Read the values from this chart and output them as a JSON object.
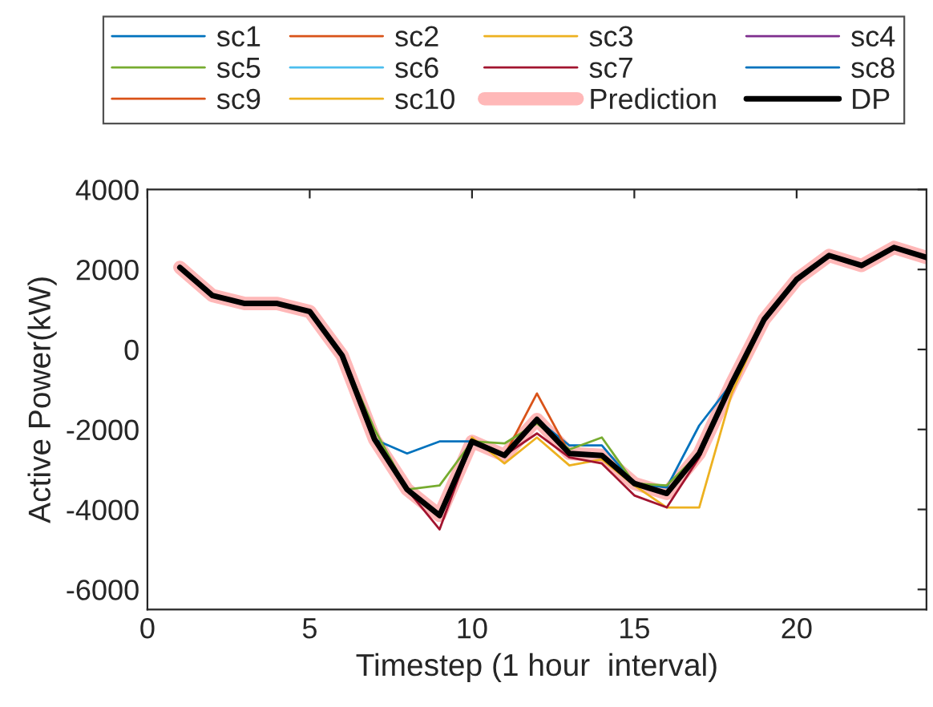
{
  "chart_data": {
    "type": "line",
    "xlabel": "Timestep (1 hour  interval)",
    "ylabel": "Active Power(kW)",
    "x": [
      1,
      2,
      3,
      4,
      5,
      6,
      7,
      8,
      9,
      10,
      11,
      12,
      13,
      14,
      15,
      16,
      17,
      18,
      19,
      20,
      21,
      22,
      23,
      24
    ],
    "xlim": [
      0,
      24
    ],
    "xticks": [
      0,
      5,
      10,
      15,
      20
    ],
    "ylim": [
      -6500,
      4000
    ],
    "yticks": [
      -6000,
      -4000,
      -2000,
      0,
      2000,
      4000
    ],
    "grid": false,
    "legend": "top",
    "marker": "none",
    "line_style": "solid",
    "series": [
      {
        "name": "Prediction",
        "color": "#ffb8b8",
        "values": [
          2050,
          1350,
          1150,
          1150,
          950,
          -150,
          -2250,
          -3500,
          -4150,
          -2300,
          -2650,
          -1750,
          -2600,
          -2650,
          -3350,
          -3600,
          -2600,
          -850,
          750,
          1750,
          2350,
          2100,
          2550,
          2300
        ]
      },
      {
        "name": "sc1",
        "color": "#0072bd",
        "values": [
          null,
          null,
          null,
          null,
          null,
          null,
          -2250,
          -2600,
          -2300,
          -2300,
          null,
          -1750,
          -2400,
          -2400,
          -3350,
          -3450,
          -1900,
          -850,
          null,
          null,
          null,
          null,
          null,
          null
        ]
      },
      {
        "name": "sc2",
        "color": "#d95319",
        "values": [
          null,
          null,
          null,
          null,
          null,
          null,
          null,
          null,
          null,
          null,
          -2650,
          -1100,
          -2600,
          null,
          null,
          null,
          null,
          null,
          null,
          null,
          null,
          null,
          null,
          null
        ]
      },
      {
        "name": "sc3",
        "color": "#edb120",
        "values": [
          null,
          null,
          null,
          null,
          null,
          null,
          null,
          null,
          -4150,
          -2200,
          -2850,
          -2200,
          -2900,
          -2750,
          -3400,
          -3950,
          -3950,
          -1100,
          750,
          null,
          null,
          null,
          null,
          null
        ]
      },
      {
        "name": "sc4",
        "color": "#7e2f8e",
        "values": [
          null,
          null,
          null,
          null,
          null,
          null,
          null,
          null,
          null,
          null,
          null,
          null,
          null,
          null,
          null,
          null,
          null,
          null,
          null,
          null,
          null,
          null,
          null,
          null
        ]
      },
      {
        "name": "sc5",
        "color": "#77ac30",
        "values": [
          null,
          null,
          null,
          null,
          null,
          -150,
          -2000,
          -3500,
          -3400,
          -2300,
          -2350,
          -1850,
          -2500,
          -2200,
          -3350,
          -3400,
          -2600,
          null,
          null,
          null,
          null,
          null,
          null,
          null
        ]
      },
      {
        "name": "sc6",
        "color": "#4dbeee",
        "values": [
          null,
          null,
          null,
          null,
          null,
          null,
          null,
          null,
          null,
          null,
          null,
          null,
          null,
          null,
          null,
          null,
          null,
          null,
          null,
          null,
          null,
          null,
          null,
          null
        ]
      },
      {
        "name": "sc7",
        "color": "#a2142f",
        "values": [
          null,
          null,
          null,
          null,
          null,
          null,
          null,
          -3500,
          -4500,
          -2300,
          -2650,
          -2100,
          -2700,
          -2850,
          -3650,
          -3950,
          -2700,
          -850,
          null,
          null,
          null,
          null,
          null,
          null
        ]
      },
      {
        "name": "sc8",
        "color": "#0072bd",
        "values": [
          null,
          null,
          null,
          null,
          null,
          null,
          null,
          null,
          null,
          null,
          null,
          null,
          null,
          null,
          null,
          null,
          null,
          null,
          null,
          null,
          null,
          null,
          null,
          null
        ]
      },
      {
        "name": "sc9",
        "color": "#d95319",
        "values": [
          null,
          null,
          null,
          null,
          null,
          null,
          null,
          null,
          null,
          null,
          null,
          null,
          null,
          null,
          null,
          null,
          null,
          null,
          null,
          null,
          null,
          null,
          null,
          null
        ]
      },
      {
        "name": "sc10",
        "color": "#edb120",
        "values": [
          null,
          null,
          null,
          null,
          null,
          null,
          null,
          null,
          null,
          null,
          null,
          null,
          null,
          null,
          null,
          null,
          null,
          null,
          null,
          null,
          null,
          null,
          null,
          null
        ]
      },
      {
        "name": "DP",
        "color": "#000000",
        "values": [
          2050,
          1350,
          1150,
          1150,
          950,
          -150,
          -2250,
          -3500,
          -4150,
          -2300,
          -2650,
          -1750,
          -2600,
          -2650,
          -3350,
          -3600,
          -2600,
          -850,
          750,
          1750,
          2350,
          2100,
          2550,
          2300
        ]
      }
    ]
  }
}
